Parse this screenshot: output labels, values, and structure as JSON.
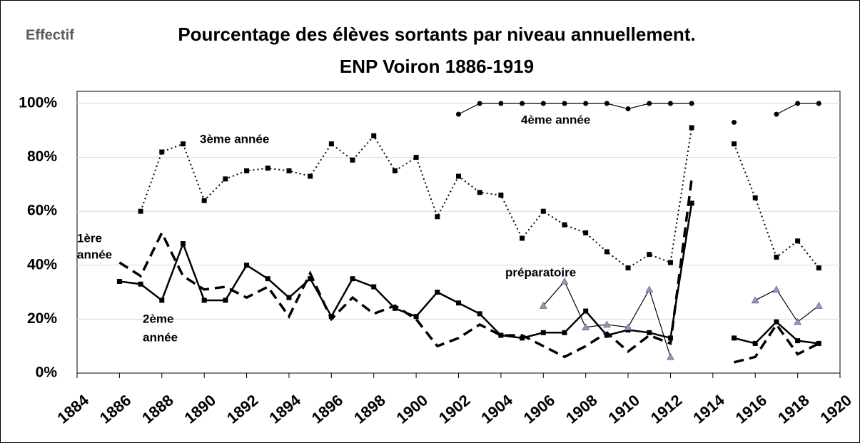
{
  "chart_data": {
    "type": "line",
    "corner_label": "Effectif",
    "title": [
      "Pourcentage des  élèves sortants par niveau annuellement.",
      "ENP Voiron 1886-1919"
    ],
    "x": [
      1886,
      1887,
      1888,
      1889,
      1890,
      1891,
      1892,
      1893,
      1894,
      1895,
      1896,
      1897,
      1898,
      1899,
      1900,
      1901,
      1902,
      1903,
      1904,
      1905,
      1906,
      1907,
      1908,
      1909,
      1910,
      1911,
      1912,
      1913,
      1914,
      1915,
      1916,
      1917,
      1918,
      1919
    ],
    "series": [
      {
        "name": "1ère année",
        "color": "#000000",
        "line_style": "dashed",
        "marker": "none",
        "values": [
          41,
          36,
          52,
          36,
          31,
          32,
          28,
          32,
          21,
          37,
          20,
          28,
          22,
          25,
          20,
          10,
          13,
          18,
          14,
          14,
          10,
          6,
          10,
          15,
          8,
          14,
          11,
          72,
          null,
          4,
          6,
          18,
          7,
          11
        ]
      },
      {
        "name": "2ème année",
        "color": "#000000",
        "line_style": "solid",
        "marker": "square",
        "values": [
          34,
          33,
          27,
          48,
          27,
          27,
          40,
          35,
          28,
          35,
          21,
          35,
          32,
          24,
          21,
          30,
          26,
          22,
          14,
          13,
          15,
          15,
          23,
          14,
          16,
          15,
          13,
          63,
          null,
          13,
          11,
          19,
          12,
          11
        ]
      },
      {
        "name": "3ème année",
        "color": "#000000",
        "line_style": "dotted",
        "marker": "square",
        "values": [
          null,
          60,
          82,
          85,
          64,
          72,
          75,
          76,
          75,
          73,
          85,
          79,
          88,
          75,
          80,
          58,
          73,
          67,
          66,
          50,
          60,
          55,
          52,
          45,
          39,
          44,
          41,
          91,
          null,
          85,
          65,
          43,
          49,
          39
        ]
      },
      {
        "name": "4ème année",
        "color": "#000000",
        "line_style": "thin",
        "marker": "circle",
        "values": [
          null,
          null,
          null,
          null,
          null,
          null,
          null,
          null,
          null,
          null,
          null,
          null,
          null,
          null,
          null,
          null,
          96,
          100,
          100,
          100,
          100,
          100,
          100,
          100,
          98,
          100,
          100,
          100,
          null,
          93,
          null,
          96,
          100,
          100
        ]
      },
      {
        "name": "préparatoire",
        "color": "#000000",
        "marker_color": "#9b8fc4",
        "line_style": "thin",
        "marker": "triangle",
        "values": [
          null,
          null,
          null,
          null,
          null,
          null,
          null,
          null,
          null,
          null,
          null,
          null,
          null,
          null,
          null,
          null,
          null,
          null,
          null,
          null,
          25,
          34,
          17,
          18,
          17,
          31,
          6,
          null,
          null,
          null,
          27,
          31,
          19,
          25
        ]
      }
    ],
    "series_labels": [
      [
        "1ère",
        "année"
      ],
      [
        "2ème",
        "année"
      ],
      [
        "3ème année"
      ],
      [
        "4ème année"
      ],
      [
        "préparatoire"
      ]
    ],
    "xlim": [
      1884,
      1920
    ],
    "xticks": [
      1884,
      1886,
      1888,
      1890,
      1892,
      1894,
      1896,
      1898,
      1900,
      1902,
      1904,
      1906,
      1908,
      1910,
      1912,
      1914,
      1916,
      1918,
      1920
    ],
    "ylim": [
      0,
      100
    ],
    "yticks": [
      {
        "value": 0,
        "label": "0%"
      },
      {
        "value": 20,
        "label": "20%"
      },
      {
        "value": 40,
        "label": "40%"
      },
      {
        "value": 60,
        "label": "60%"
      },
      {
        "value": 80,
        "label": "80%"
      },
      {
        "value": 100,
        "label": "100%"
      }
    ],
    "grid": true
  }
}
